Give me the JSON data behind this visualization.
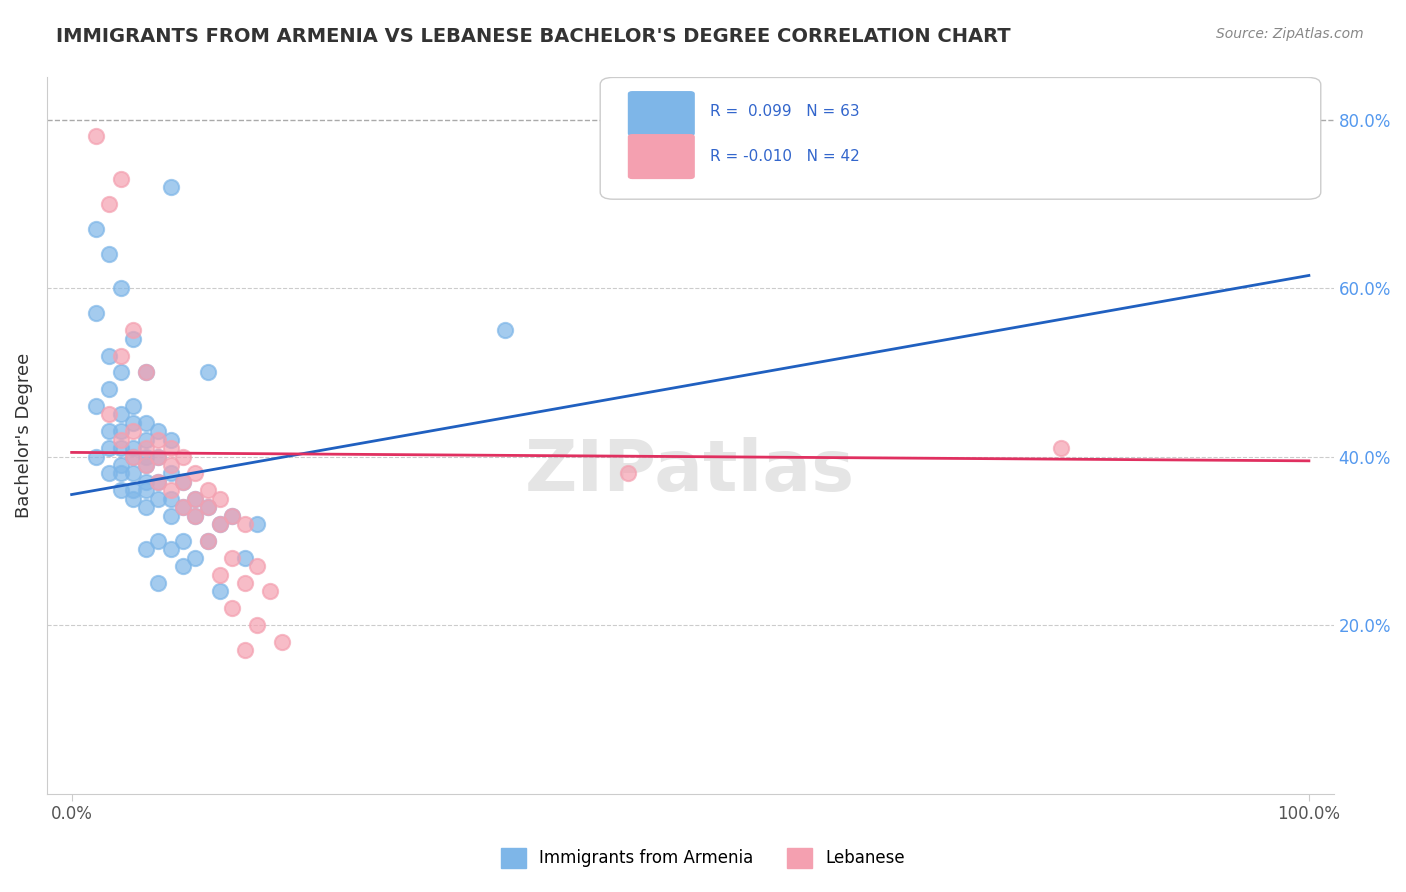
{
  "title": "IMMIGRANTS FROM ARMENIA VS LEBANESE BACHELOR'S DEGREE CORRELATION CHART",
  "source": "Source: ZipAtlas.com",
  "xlabel": "",
  "ylabel": "Bachelor's Degree",
  "legend_label1": "Immigrants from Armenia",
  "legend_label2": "Lebanese",
  "r1": 0.099,
  "n1": 63,
  "r2": -0.01,
  "n2": 42,
  "color1": "#7EB6E8",
  "color2": "#F4A0B0",
  "line_color1": "#2060C0",
  "line_color2": "#E03060",
  "xlim": [
    0.0,
    1.0
  ],
  "ylim": [
    0.0,
    0.85
  ],
  "scatter1_x": [
    0.02,
    0.03,
    0.04,
    0.02,
    0.05,
    0.03,
    0.06,
    0.04,
    0.03,
    0.05,
    0.02,
    0.04,
    0.06,
    0.05,
    0.07,
    0.04,
    0.03,
    0.06,
    0.08,
    0.05,
    0.03,
    0.04,
    0.06,
    0.02,
    0.05,
    0.07,
    0.04,
    0.06,
    0.03,
    0.05,
    0.08,
    0.04,
    0.06,
    0.07,
    0.09,
    0.05,
    0.04,
    0.06,
    0.08,
    0.1,
    0.05,
    0.07,
    0.06,
    0.09,
    0.11,
    0.13,
    0.1,
    0.08,
    0.12,
    0.15,
    0.07,
    0.09,
    0.11,
    0.06,
    0.08,
    0.1,
    0.14,
    0.09,
    0.07,
    0.12,
    0.35,
    0.08,
    0.11
  ],
  "scatter1_y": [
    0.67,
    0.64,
    0.6,
    0.57,
    0.54,
    0.52,
    0.5,
    0.5,
    0.48,
    0.46,
    0.46,
    0.45,
    0.44,
    0.44,
    0.43,
    0.43,
    0.43,
    0.42,
    0.42,
    0.41,
    0.41,
    0.41,
    0.4,
    0.4,
    0.4,
    0.4,
    0.39,
    0.39,
    0.38,
    0.38,
    0.38,
    0.38,
    0.37,
    0.37,
    0.37,
    0.36,
    0.36,
    0.36,
    0.35,
    0.35,
    0.35,
    0.35,
    0.34,
    0.34,
    0.34,
    0.33,
    0.33,
    0.33,
    0.32,
    0.32,
    0.3,
    0.3,
    0.3,
    0.29,
    0.29,
    0.28,
    0.28,
    0.27,
    0.25,
    0.24,
    0.55,
    0.72,
    0.5
  ],
  "scatter2_x": [
    0.02,
    0.04,
    0.03,
    0.05,
    0.04,
    0.06,
    0.03,
    0.05,
    0.07,
    0.04,
    0.06,
    0.08,
    0.05,
    0.07,
    0.09,
    0.06,
    0.08,
    0.1,
    0.07,
    0.09,
    0.11,
    0.08,
    0.1,
    0.12,
    0.09,
    0.11,
    0.13,
    0.1,
    0.12,
    0.14,
    0.11,
    0.13,
    0.15,
    0.12,
    0.14,
    0.16,
    0.13,
    0.15,
    0.17,
    0.14,
    0.8,
    0.45
  ],
  "scatter2_y": [
    0.78,
    0.73,
    0.7,
    0.55,
    0.52,
    0.5,
    0.45,
    0.43,
    0.42,
    0.42,
    0.41,
    0.41,
    0.4,
    0.4,
    0.4,
    0.39,
    0.39,
    0.38,
    0.37,
    0.37,
    0.36,
    0.36,
    0.35,
    0.35,
    0.34,
    0.34,
    0.33,
    0.33,
    0.32,
    0.32,
    0.3,
    0.28,
    0.27,
    0.26,
    0.25,
    0.24,
    0.22,
    0.2,
    0.18,
    0.17,
    0.41,
    0.38
  ]
}
